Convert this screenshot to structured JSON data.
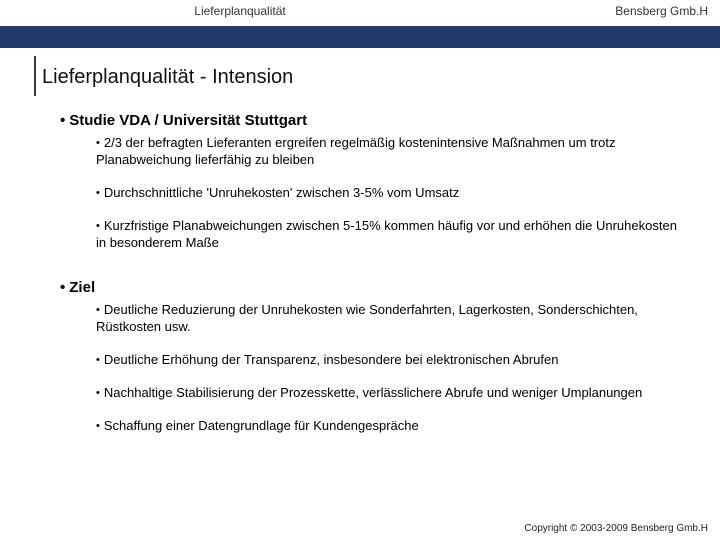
{
  "colors": {
    "navy": "#1f3a68",
    "text": "#000000",
    "headerText": "#333333",
    "background": "#ffffff",
    "vrule": "#3a3a3a"
  },
  "typography": {
    "family": "Arial, Helvetica, sans-serif",
    "header_fontsize": 12,
    "title_fontsize": 20,
    "l1_fontsize": 15,
    "l2_fontsize": 13,
    "footer_fontsize": 10
  },
  "header": {
    "left": "Lieferplanqualität",
    "right": "Bensberg Gmb.H"
  },
  "title": "Lieferplanqualität - Intension",
  "sections": [
    {
      "heading": "Studie VDA / Universität Stuttgart",
      "items": [
        "2/3 der befragten Lieferanten ergreifen regelmäßig kostenintensive Maßnahmen um trotz Planabweichung lieferfähig zu bleiben",
        "Durchschnittliche 'Unruhekosten' zwischen 3-5% vom Umsatz",
        "Kurzfristige Planabweichungen zwischen 5-15% kommen häufig vor und erhöhen die Unruhekosten in besonderem Maße"
      ]
    },
    {
      "heading": "Ziel",
      "items": [
        "Deutliche Reduzierung der Unruhekosten wie Sonderfahrten, Lagerkosten, Sonderschichten, Rüstkosten usw.",
        "Deutliche Erhöhung der Transparenz, insbesondere bei elektronischen Abrufen",
        "Nachhaltige Stabilisierung der Prozesskette, verlässlichere Abrufe und weniger Umplanungen",
        "Schaffung einer Datengrundlage für Kundengespräche"
      ]
    }
  ],
  "footer": "Copyright © 2003-2009 Bensberg Gmb.H"
}
